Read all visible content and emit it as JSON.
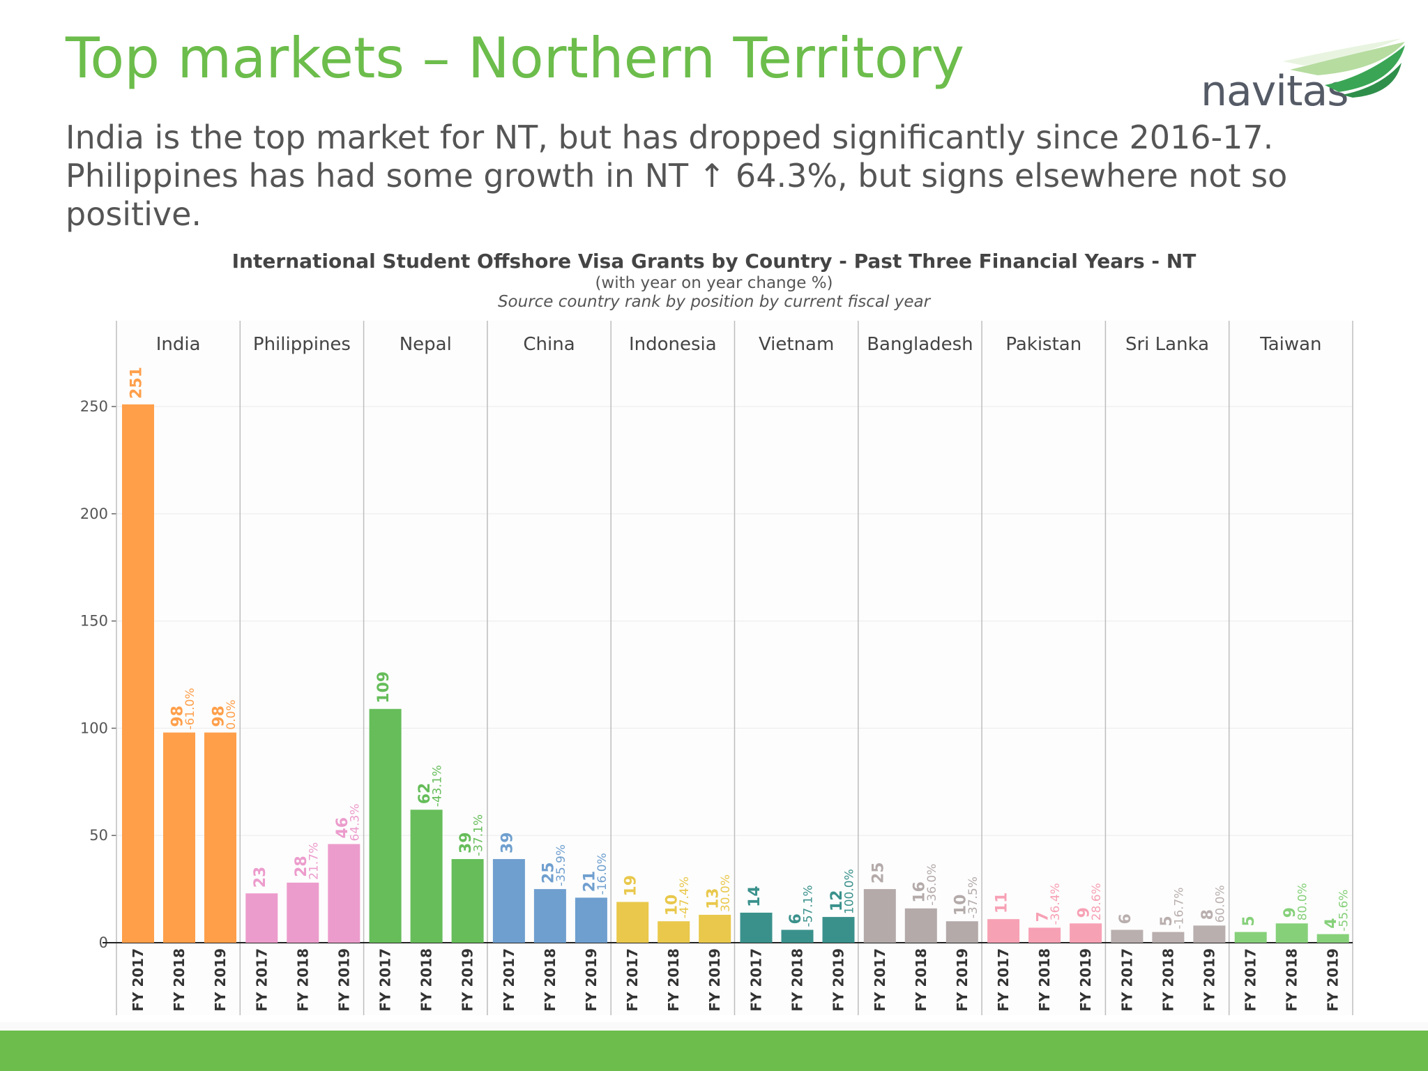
{
  "slide": {
    "title": "Top markets – Northern Territory",
    "subtitle": "India is the top market for NT, but has dropped significantly since 2016-17. Philippines has had some growth in NT ↑ 64.3%, but signs elsewhere not so positive.",
    "logo_text": "navitas"
  },
  "colors": {
    "title": "#6cbd4b",
    "bottom_bar": "#6cbd4b",
    "logo_green": "#3aa655"
  },
  "chart_data": {
    "type": "bar",
    "title": "International Student Offshore Visa Grants by Country - Past Three Financial Years - NT",
    "subtitle": "(with year on year change %)",
    "note": "Source country rank by position by current fiscal year",
    "ylim": [
      0,
      290
    ],
    "yticks": [
      0,
      50,
      100,
      150,
      200,
      250
    ],
    "grid": true,
    "categories": [
      "FY 2017",
      "FY 2018",
      "FY 2019"
    ],
    "groups": [
      {
        "name": "India",
        "color": "#ff9f4a",
        "values": [
          251,
          98,
          98
        ],
        "changes": [
          "",
          "-61.0%",
          "0.0%"
        ]
      },
      {
        "name": "Philippines",
        "color": "#ec9ccc",
        "values": [
          23,
          28,
          46
        ],
        "changes": [
          "",
          "21.7%",
          "64.3%"
        ]
      },
      {
        "name": "Nepal",
        "color": "#66bd5a",
        "values": [
          109,
          62,
          39
        ],
        "changes": [
          "",
          "-43.1%",
          "-37.1%"
        ]
      },
      {
        "name": "China",
        "color": "#6f9fcf",
        "values": [
          39,
          25,
          21
        ],
        "changes": [
          "",
          "-35.9%",
          "-16.0%"
        ]
      },
      {
        "name": "Indonesia",
        "color": "#e9c84b",
        "values": [
          19,
          10,
          13
        ],
        "changes": [
          "",
          "-47.4%",
          "30.0%"
        ]
      },
      {
        "name": "Vietnam",
        "color": "#3a918c",
        "values": [
          14,
          6,
          12
        ],
        "changes": [
          "",
          "-57.1%",
          "100.0%"
        ]
      },
      {
        "name": "Bangladesh",
        "color": "#b4aaaa",
        "values": [
          25,
          16,
          10
        ],
        "changes": [
          "",
          "-36.0%",
          "-37.5%"
        ]
      },
      {
        "name": "Pakistan",
        "color": "#f7a1b5",
        "values": [
          11,
          7,
          9
        ],
        "changes": [
          "",
          "-36.4%",
          "28.6%"
        ]
      },
      {
        "name": "Sri Lanka",
        "color": "#b9afae",
        "values": [
          6,
          5,
          8
        ],
        "changes": [
          "",
          "-16.7%",
          "60.0%"
        ]
      },
      {
        "name": "Taiwan",
        "color": "#86d07a",
        "values": [
          5,
          9,
          4
        ],
        "changes": [
          "",
          "80.0%",
          "-55.6%"
        ]
      }
    ]
  }
}
